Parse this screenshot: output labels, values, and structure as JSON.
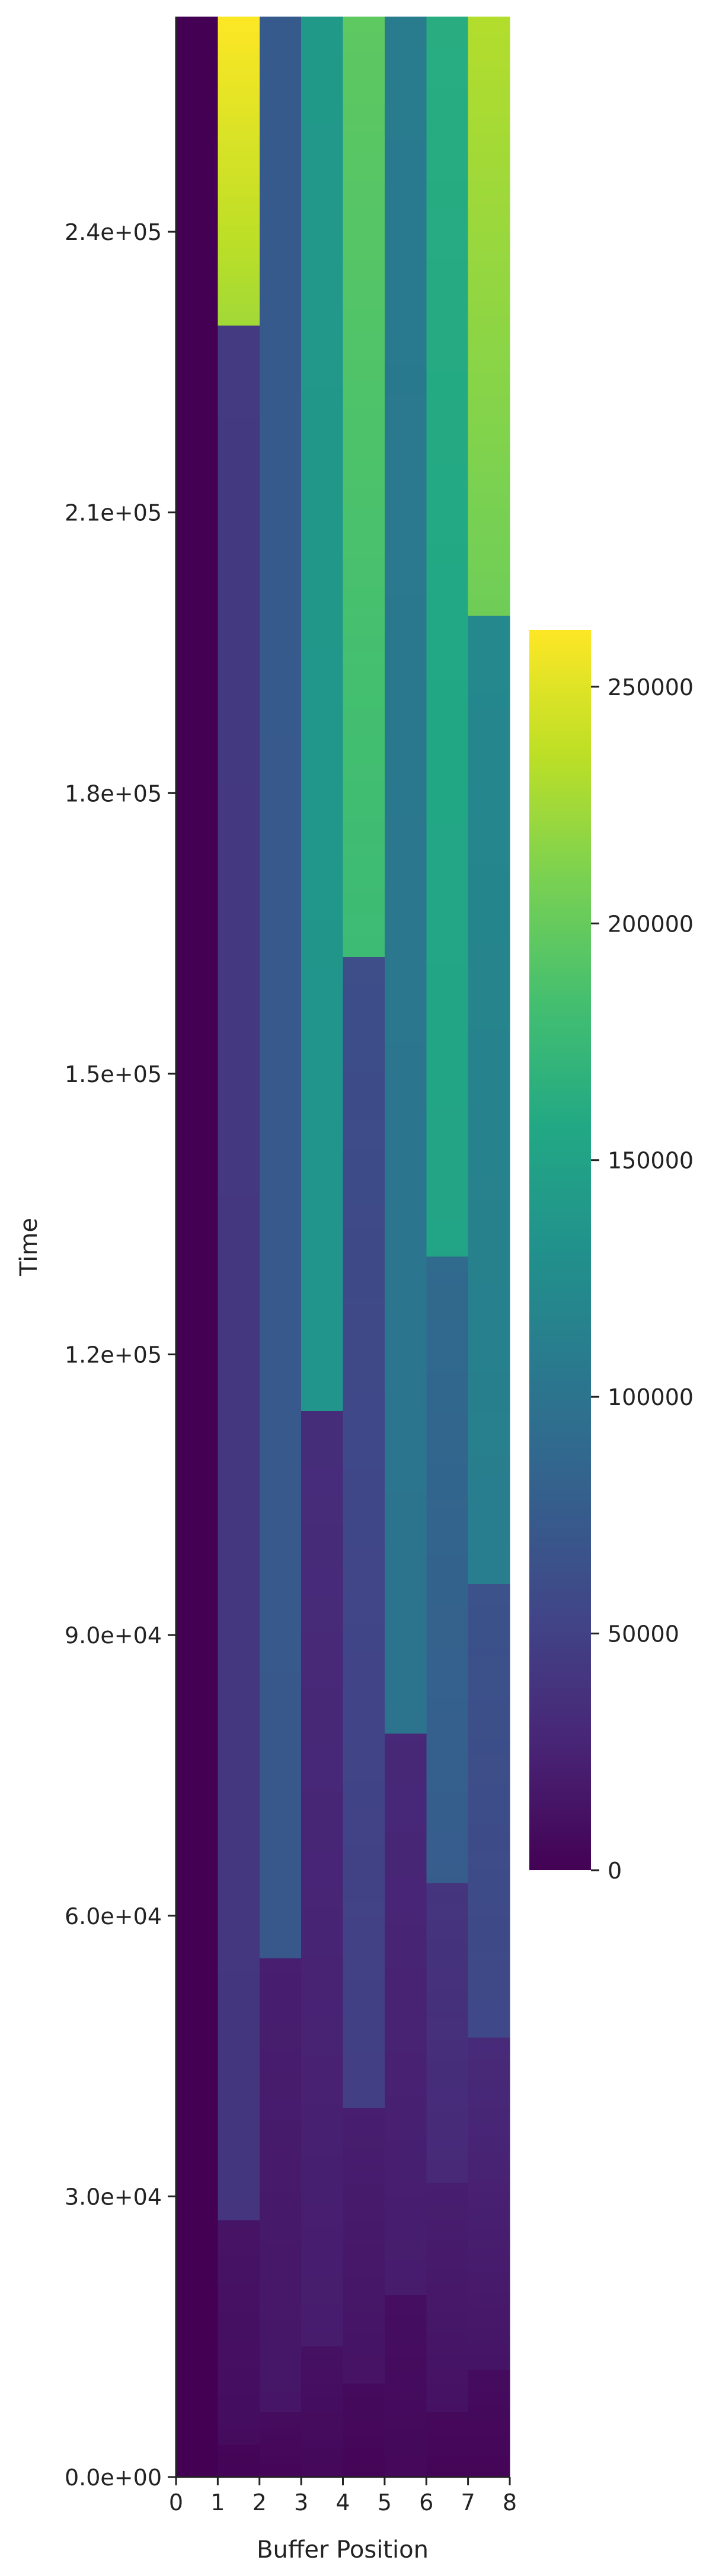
{
  "chart_data": {
    "type": "heatmap",
    "xlabel": "Buffer Position",
    "ylabel": "Time",
    "x_ticks": [
      "0",
      "1",
      "2",
      "3",
      "4",
      "5",
      "6",
      "7",
      "8"
    ],
    "y_ticks": [
      "0.0e+00",
      "3.0e+04",
      "6.0e+04",
      "9.0e+04",
      "1.2e+05",
      "1.5e+05",
      "1.8e+05",
      "2.1e+05",
      "2.4e+05"
    ],
    "y_tick_values": [
      0,
      30000,
      60000,
      90000,
      120000,
      150000,
      180000,
      210000,
      240000
    ],
    "ylim": [
      0,
      263000
    ],
    "colorbar": {
      "colormap": "viridis",
      "ticks": [
        "0",
        "50000",
        "100000",
        "150000",
        "200000",
        "250000"
      ],
      "tick_values": [
        0,
        50000,
        100000,
        150000,
        200000,
        250000
      ],
      "range": [
        0,
        262000
      ]
    },
    "columns": [
      {
        "position": 0,
        "segments": [
          {
            "t0": 0,
            "t1": 263000,
            "v0": 0,
            "v1": 0
          }
        ]
      },
      {
        "position": 1,
        "segments": [
          {
            "t0": 0,
            "t1": 3500,
            "v0": 2000,
            "v1": 3500
          },
          {
            "t0": 3500,
            "t1": 27500,
            "v0": 8000,
            "v1": 14000
          },
          {
            "t0": 27500,
            "t1": 230000,
            "v0": 40000,
            "v1": 44000
          },
          {
            "t0": 230000,
            "t1": 263000,
            "v0": 225000,
            "v1": 262000
          }
        ]
      },
      {
        "position": 2,
        "segments": [
          {
            "t0": 0,
            "t1": 7000,
            "v0": 3000,
            "v1": 8000
          },
          {
            "t0": 7000,
            "t1": 55500,
            "v0": 15000,
            "v1": 22000
          },
          {
            "t0": 55500,
            "t1": 263000,
            "v0": 72000,
            "v1": 74000
          }
        ]
      },
      {
        "position": 3,
        "segments": [
          {
            "t0": 0,
            "t1": 14000,
            "v0": 5000,
            "v1": 12000
          },
          {
            "t0": 14000,
            "t1": 114000,
            "v0": 20000,
            "v1": 34000
          },
          {
            "t0": 114000,
            "t1": 263000,
            "v0": 134000,
            "v1": 140000
          }
        ]
      },
      {
        "position": 4,
        "segments": [
          {
            "t0": 0,
            "t1": 10000,
            "v0": 3000,
            "v1": 7000
          },
          {
            "t0": 10000,
            "t1": 39500,
            "v0": 13000,
            "v1": 22000
          },
          {
            "t0": 39500,
            "t1": 162500,
            "v0": 48000,
            "v1": 62000
          },
          {
            "t0": 162500,
            "t1": 263000,
            "v0": 178000,
            "v1": 196000
          }
        ]
      },
      {
        "position": 5,
        "segments": [
          {
            "t0": 0,
            "t1": 19500,
            "v0": 5000,
            "v1": 10000
          },
          {
            "t0": 19500,
            "t1": 79500,
            "v0": 20000,
            "v1": 30000
          },
          {
            "t0": 79500,
            "t1": 263000,
            "v0": 100000,
            "v1": 108000
          }
        ]
      },
      {
        "position": 6,
        "segments": [
          {
            "t0": 0,
            "t1": 7000,
            "v0": 3000,
            "v1": 6000
          },
          {
            "t0": 7000,
            "t1": 31500,
            "v0": 12000,
            "v1": 22000
          },
          {
            "t0": 31500,
            "t1": 63500,
            "v0": 30000,
            "v1": 40000
          },
          {
            "t0": 63500,
            "t1": 130500,
            "v0": 76000,
            "v1": 90000
          },
          {
            "t0": 130500,
            "t1": 263000,
            "v0": 152000,
            "v1": 162000
          }
        ]
      },
      {
        "position": 7,
        "segments": [
          {
            "t0": 0,
            "t1": 11500,
            "v0": 3000,
            "v1": 8000
          },
          {
            "t0": 11500,
            "t1": 47000,
            "v0": 14000,
            "v1": 32000
          },
          {
            "t0": 47000,
            "t1": 95500,
            "v0": 56000,
            "v1": 66000
          },
          {
            "t0": 95500,
            "t1": 199000,
            "v0": 110000,
            "v1": 122000
          },
          {
            "t0": 199000,
            "t1": 263000,
            "v0": 204000,
            "v1": 232000
          }
        ]
      }
    ]
  }
}
